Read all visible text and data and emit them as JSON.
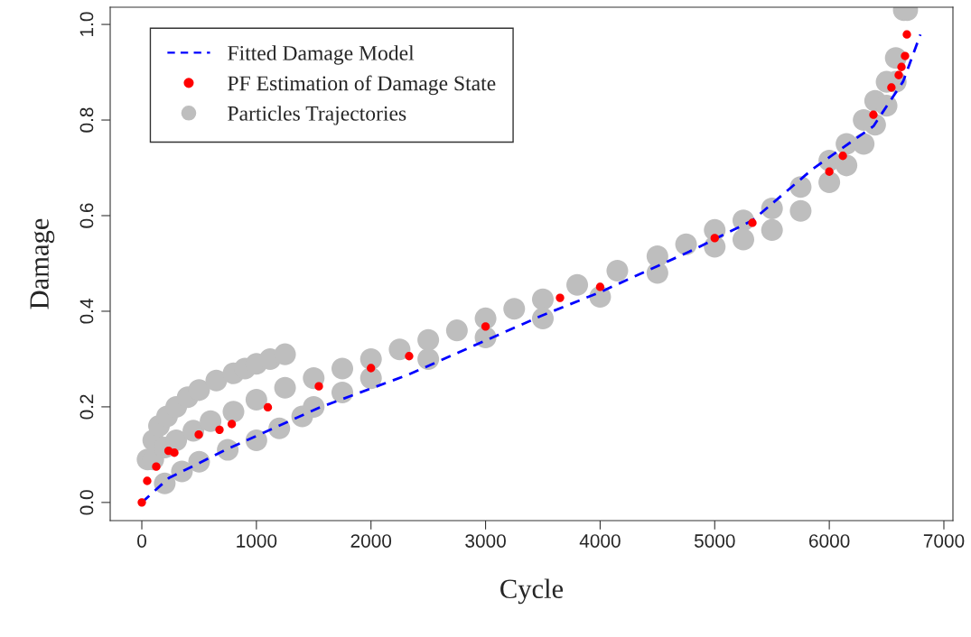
{
  "chart_data": {
    "type": "scatter",
    "xlabel": "Cycle",
    "ylabel": "Damage",
    "xlim": [
      -276,
      7079
    ],
    "ylim": [
      -0.038,
      1.036
    ],
    "xticks": [
      0,
      1000,
      2000,
      3000,
      4000,
      5000,
      6000,
      7000
    ],
    "yticks": [
      {
        "value": 0,
        "label": "0.0"
      },
      0.2,
      0.4,
      0.6,
      0.8,
      {
        "value": 1,
        "label": "1.0"
      }
    ],
    "grid": false,
    "legend": "top left",
    "series": [
      {
        "name": "Fitted Damage Model",
        "type": "line",
        "color": "#0000ff",
        "line_style": "dashed",
        "marker": "none",
        "x": [
          0,
          236,
          757,
          1545,
          2333,
          3492,
          4000,
          4808,
          5329,
          5857,
          6385,
          6645,
          6795
        ],
        "values": [
          0,
          0.051,
          0.113,
          0.198,
          0.268,
          0.391,
          0.44,
          0.528,
          0.59,
          0.698,
          0.787,
          0.881,
          0.979
        ]
      },
      {
        "name": "PF Estimation of Damage State",
        "color": "#ff0000",
        "marker": "circle",
        "x": [
          0,
          47,
          126,
          233,
          284,
          497,
          678,
          785,
          1100,
          1545,
          2000,
          2333,
          3000,
          3650,
          4000,
          5000,
          5329,
          6000,
          6118,
          6385,
          6542,
          6606,
          6630,
          6661,
          6677
        ],
        "values": [
          0,
          0.045,
          0.075,
          0.108,
          0.104,
          0.142,
          0.152,
          0.164,
          0.199,
          0.243,
          0.281,
          0.306,
          0.368,
          0.428,
          0.451,
          0.553,
          0.585,
          0.692,
          0.725,
          0.811,
          0.868,
          0.894,
          0.911,
          0.934,
          0.979
        ]
      },
      {
        "name": "Particles Trajectories",
        "color": "#bebebe",
        "marker": "circle",
        "x": [
          50,
          100,
          150,
          220,
          300,
          400,
          500,
          650,
          800,
          900,
          1000,
          1120,
          1250,
          100,
          200,
          300,
          450,
          600,
          800,
          1000,
          1250,
          1500,
          1750,
          2000,
          2250,
          2500,
          2750,
          3000,
          3250,
          3500,
          3800,
          4150,
          4500,
          4750,
          5000,
          5250,
          5500,
          5750,
          6000,
          6150,
          6300,
          6400,
          6500,
          6580,
          6650,
          6680,
          200,
          350,
          500,
          750,
          1000,
          1200,
          1400,
          1500,
          1750,
          2000,
          2500,
          3000,
          3500,
          4000,
          4500,
          5000,
          5250,
          5500,
          5750,
          6000,
          6150,
          6300,
          6400,
          6500,
          6580
        ],
        "values": [
          0.09,
          0.13,
          0.16,
          0.18,
          0.2,
          0.22,
          0.235,
          0.255,
          0.27,
          0.28,
          0.29,
          0.3,
          0.31,
          0.09,
          0.115,
          0.13,
          0.15,
          0.17,
          0.19,
          0.215,
          0.24,
          0.26,
          0.28,
          0.3,
          0.32,
          0.34,
          0.36,
          0.385,
          0.405,
          0.425,
          0.455,
          0.485,
          0.515,
          0.54,
          0.57,
          0.59,
          0.615,
          0.66,
          0.715,
          0.75,
          0.8,
          0.84,
          0.88,
          0.93,
          1.03,
          1.03,
          0.04,
          0.065,
          0.085,
          0.11,
          0.13,
          0.155,
          0.18,
          0.2,
          0.23,
          0.26,
          0.3,
          0.345,
          0.385,
          0.43,
          0.48,
          0.535,
          0.55,
          0.57,
          0.61,
          0.67,
          0.705,
          0.75,
          0.79,
          0.83,
          0.88
        ]
      }
    ]
  }
}
